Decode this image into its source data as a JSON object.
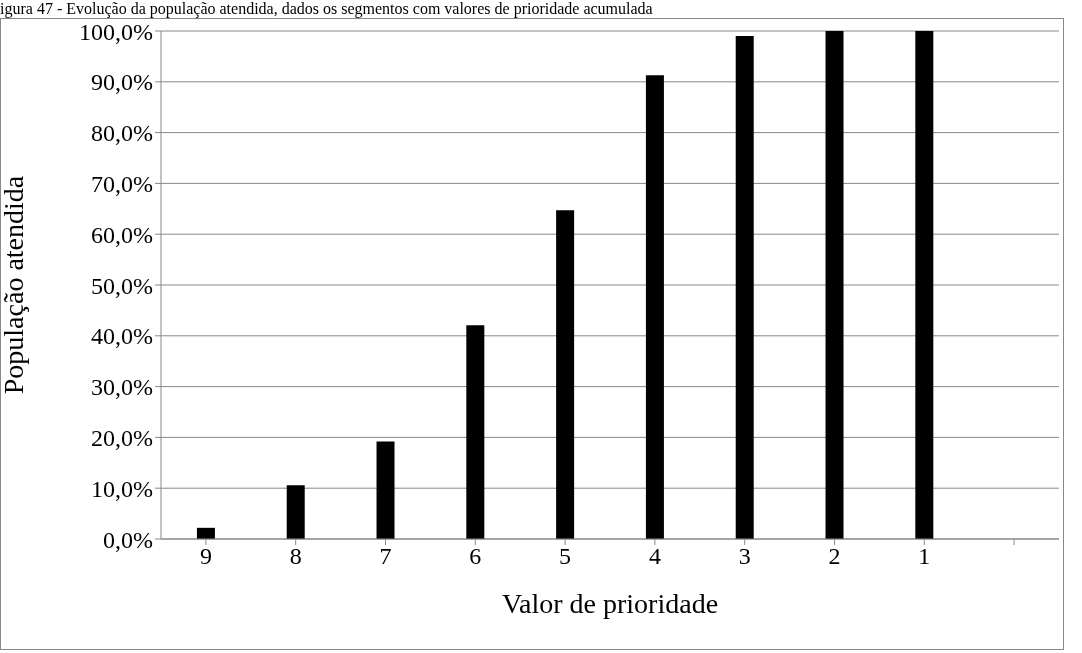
{
  "chart_data": {
    "type": "bar",
    "title": "igura 47 - Evolução da população atendida, dados os segmentos com valores de prioridade acumulada",
    "xlabel": "Valor de prioridade",
    "ylabel": "População atendida",
    "categories": [
      "9",
      "8",
      "7",
      "6",
      "5",
      "4",
      "3",
      "2",
      "1",
      null
    ],
    "values": [
      2.2,
      10.6,
      19.2,
      42.1,
      64.7,
      91.3,
      99.0,
      100,
      100,
      null
    ],
    "color": "#000000",
    "ylim": [
      0,
      100
    ],
    "yticks": [
      {
        "value": 0,
        "label": "0,0%"
      },
      {
        "value": 10,
        "label": "10,0%"
      },
      {
        "value": 20,
        "label": "20,0%"
      },
      {
        "value": 30,
        "label": "30,0%"
      },
      {
        "value": 40,
        "label": "40,0%"
      },
      {
        "value": 50,
        "label": "50,0%"
      },
      {
        "value": 60,
        "label": "60,0%"
      },
      {
        "value": 70,
        "label": "70,0%"
      },
      {
        "value": 80,
        "label": "80,0%"
      },
      {
        "value": 90,
        "label": "90,0%"
      },
      {
        "value": 100,
        "label": "100,0%"
      }
    ],
    "grid": "y"
  }
}
